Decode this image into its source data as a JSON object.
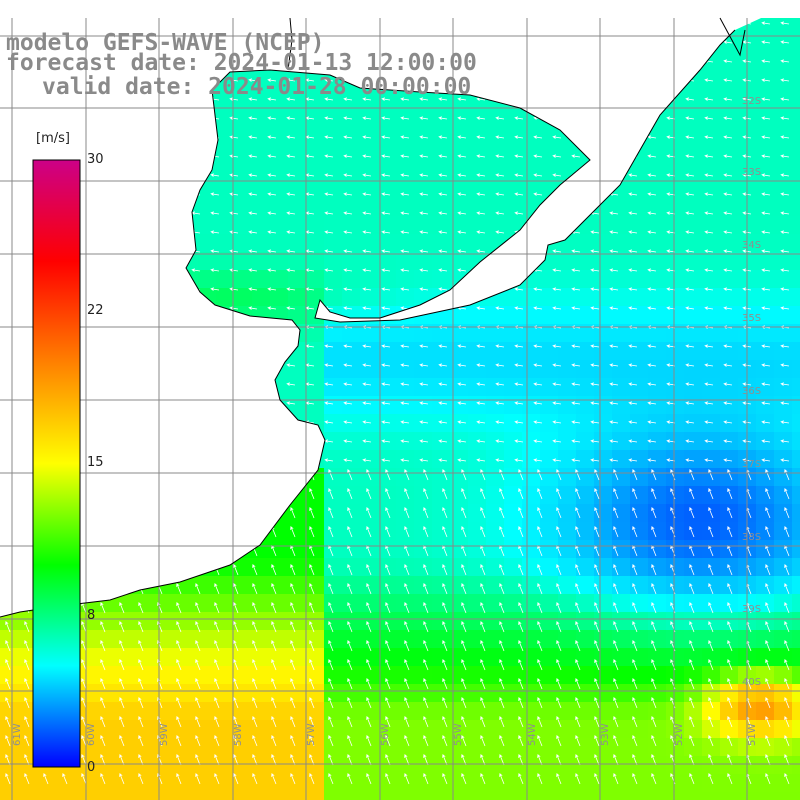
{
  "title": {
    "line1": "modelo GEFS-WAVE (NCEP)",
    "line2": "forecast date: 2024-01-13 12:00:00",
    "line3": "valid date: 2024-01-28 00:00:00"
  },
  "colorbar": {
    "unit": "[m/s]",
    "range": [
      0,
      30
    ],
    "ticks": [
      "30",
      "22",
      "15",
      "8",
      "0"
    ],
    "tick_values": [
      30,
      22,
      15,
      8,
      0
    ],
    "colors": [
      "#0000ff",
      "#00ffff",
      "#00ff00",
      "#ffff00",
      "#ff8000",
      "#ff0000",
      "#cc0088"
    ]
  },
  "grid": {
    "lat_labels": [
      "32S",
      "33S",
      "34S",
      "35S",
      "36S",
      "37S",
      "38S",
      "39S",
      "40S"
    ],
    "lon_labels": [
      "61W",
      "60W",
      "59W",
      "58W",
      "57W",
      "56W",
      "55W",
      "54W",
      "53W",
      "52W",
      "51W"
    ]
  },
  "colors": {
    "land": "#ffffff",
    "coast": "#000000",
    "grid": "#888888",
    "arrows": "#ffffff",
    "title": "#8a8a8a"
  }
}
